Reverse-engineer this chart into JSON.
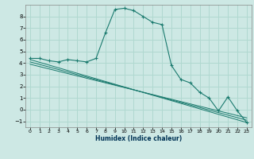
{
  "title": "",
  "xlabel": "Humidex (Indice chaleur)",
  "ylabel": "",
  "bg_color": "#cde8e4",
  "grid_color": "#b0d8d0",
  "line_color": "#1a7a6e",
  "xlim": [
    -0.5,
    23.5
  ],
  "ylim": [
    -1.5,
    9.0
  ],
  "xticks": [
    0,
    1,
    2,
    3,
    4,
    5,
    6,
    7,
    8,
    9,
    10,
    11,
    12,
    13,
    14,
    15,
    16,
    17,
    18,
    19,
    20,
    21,
    22,
    23
  ],
  "yticks": [
    -1,
    0,
    1,
    2,
    3,
    4,
    5,
    6,
    7,
    8
  ],
  "series1_x": [
    0,
    1,
    2,
    3,
    4,
    5,
    6,
    7,
    8,
    9,
    10,
    11,
    12,
    13,
    14,
    15,
    16,
    17,
    18,
    19,
    20,
    21,
    22,
    23
  ],
  "series1_y": [
    4.4,
    4.4,
    4.2,
    4.1,
    4.3,
    4.2,
    4.1,
    4.4,
    6.6,
    8.6,
    8.7,
    8.5,
    8.0,
    7.5,
    7.3,
    3.8,
    2.6,
    2.3,
    1.5,
    1.0,
    -0.1,
    1.1,
    -0.1,
    -1.1
  ],
  "series2_x": [
    0,
    23
  ],
  "series2_y": [
    4.3,
    -1.1
  ],
  "series3_x": [
    0,
    23
  ],
  "series3_y": [
    4.1,
    -0.9
  ],
  "series4_x": [
    0,
    23
  ],
  "series4_y": [
    3.9,
    -0.7
  ]
}
